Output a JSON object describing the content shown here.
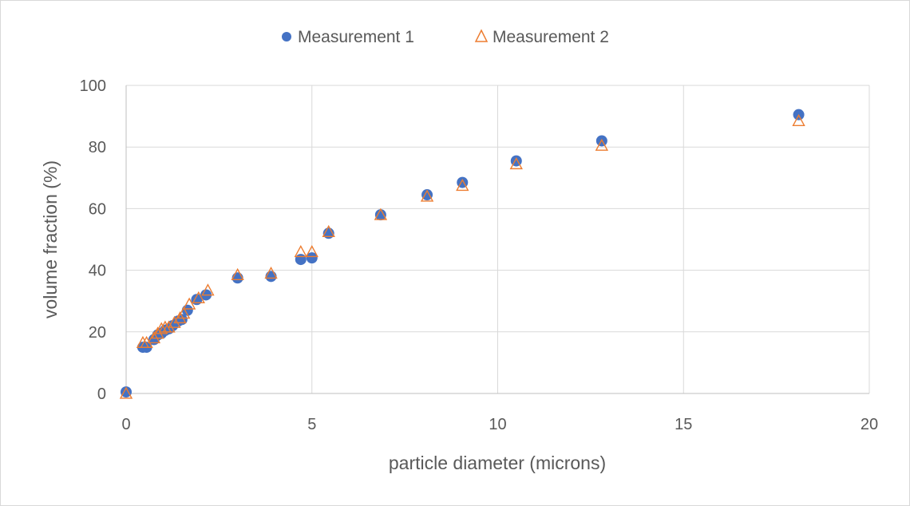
{
  "chart_data": {
    "type": "scatter",
    "title": "",
    "xlabel": "particle diameter (microns)",
    "ylabel": "volume fraction (%)",
    "xlim": [
      0,
      20
    ],
    "ylim": [
      0,
      100
    ],
    "xticks": [
      0,
      5,
      10,
      15,
      20
    ],
    "yticks": [
      0,
      20,
      40,
      60,
      80,
      100
    ],
    "grid": true,
    "legend_position": "top",
    "series": [
      {
        "name": "Measurement 1",
        "marker": "circle",
        "color": "#4472c4",
        "points": [
          [
            0,
            0.5
          ],
          [
            0.45,
            15
          ],
          [
            0.55,
            15
          ],
          [
            0.75,
            17.5
          ],
          [
            0.85,
            19
          ],
          [
            0.95,
            19.5
          ],
          [
            1.05,
            20.5
          ],
          [
            1.15,
            21
          ],
          [
            1.25,
            22
          ],
          [
            1.4,
            23.5
          ],
          [
            1.5,
            24
          ],
          [
            1.65,
            27
          ],
          [
            1.9,
            30.5
          ],
          [
            2.15,
            32
          ],
          [
            3.0,
            37.5
          ],
          [
            3.9,
            38
          ],
          [
            4.7,
            43.5
          ],
          [
            5.0,
            44
          ],
          [
            5.45,
            52
          ],
          [
            6.85,
            58
          ],
          [
            8.1,
            64.5
          ],
          [
            9.05,
            68.5
          ],
          [
            10.5,
            75.5
          ],
          [
            12.8,
            82
          ],
          [
            18.1,
            90.5
          ]
        ]
      },
      {
        "name": "Measurement 2",
        "marker": "triangle-open",
        "color": "#ed7d31",
        "points": [
          [
            0,
            0
          ],
          [
            0.45,
            16.5
          ],
          [
            0.55,
            16.5
          ],
          [
            0.75,
            18
          ],
          [
            0.85,
            19.5
          ],
          [
            0.95,
            21
          ],
          [
            1.05,
            21.5
          ],
          [
            1.15,
            21.5
          ],
          [
            1.3,
            23
          ],
          [
            1.45,
            24.5
          ],
          [
            1.55,
            26
          ],
          [
            1.7,
            29
          ],
          [
            1.95,
            31
          ],
          [
            2.2,
            33.5
          ],
          [
            3.0,
            38.5
          ],
          [
            3.9,
            39
          ],
          [
            4.7,
            46
          ],
          [
            5.0,
            46
          ],
          [
            5.45,
            52.5
          ],
          [
            6.85,
            58
          ],
          [
            8.1,
            64
          ],
          [
            9.05,
            67.5
          ],
          [
            10.5,
            74.5
          ],
          [
            12.8,
            80.5
          ],
          [
            18.1,
            88.5
          ]
        ]
      }
    ]
  }
}
